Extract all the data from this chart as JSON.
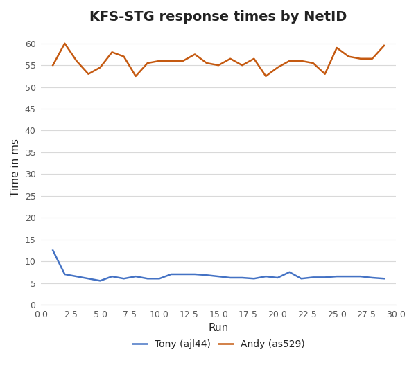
{
  "title": "KFS-STG response times by NetID",
  "xlabel": "Run",
  "ylabel": "Time in ms",
  "tony_x": [
    1,
    2,
    3,
    4,
    5,
    6,
    7,
    8,
    9,
    10,
    11,
    12,
    13,
    14,
    15,
    16,
    17,
    18,
    19,
    20,
    21,
    22,
    23,
    24,
    25,
    26,
    27,
    28,
    29
  ],
  "tony_y": [
    12.5,
    7.0,
    6.5,
    6.0,
    5.5,
    6.5,
    6.0,
    6.5,
    6.0,
    6.0,
    7.0,
    7.0,
    7.0,
    6.8,
    6.5,
    6.2,
    6.2,
    6.0,
    6.5,
    6.2,
    7.5,
    6.0,
    6.3,
    6.3,
    6.5,
    6.5,
    6.5,
    6.2,
    6.0
  ],
  "andy_x": [
    1,
    2,
    3,
    4,
    5,
    6,
    7,
    8,
    9,
    10,
    11,
    12,
    13,
    14,
    15,
    16,
    17,
    18,
    19,
    20,
    21,
    22,
    23,
    24,
    25,
    26,
    27,
    28,
    29
  ],
  "andy_y": [
    55,
    60,
    56,
    53,
    54.5,
    58,
    57,
    52.5,
    55.5,
    56,
    56,
    56,
    57.5,
    55.5,
    55,
    56.5,
    55,
    56.5,
    52.5,
    54.5,
    56,
    56,
    55.5,
    53,
    59,
    57,
    56.5,
    56.5,
    59.5
  ],
  "tony_color": "#4472c4",
  "andy_color": "#c55a11",
  "tony_label": "Tony (ajl44)",
  "andy_label": "Andy (as529)",
  "ylim": [
    0,
    63
  ],
  "xlim": [
    0.0,
    30.0
  ],
  "yticks": [
    0,
    5,
    10,
    15,
    20,
    25,
    30,
    35,
    40,
    45,
    50,
    55,
    60
  ],
  "xticks": [
    0.0,
    2.5,
    5.0,
    7.5,
    10.0,
    12.5,
    15.0,
    17.5,
    20.0,
    22.5,
    25.0,
    27.5,
    30.0
  ],
  "grid_color": "#d9d9d9",
  "background_color": "#ffffff",
  "tick_color": "#595959",
  "title_fontsize": 14,
  "axis_label_fontsize": 11,
  "tick_fontsize": 9,
  "legend_fontsize": 10,
  "line_width": 1.8
}
